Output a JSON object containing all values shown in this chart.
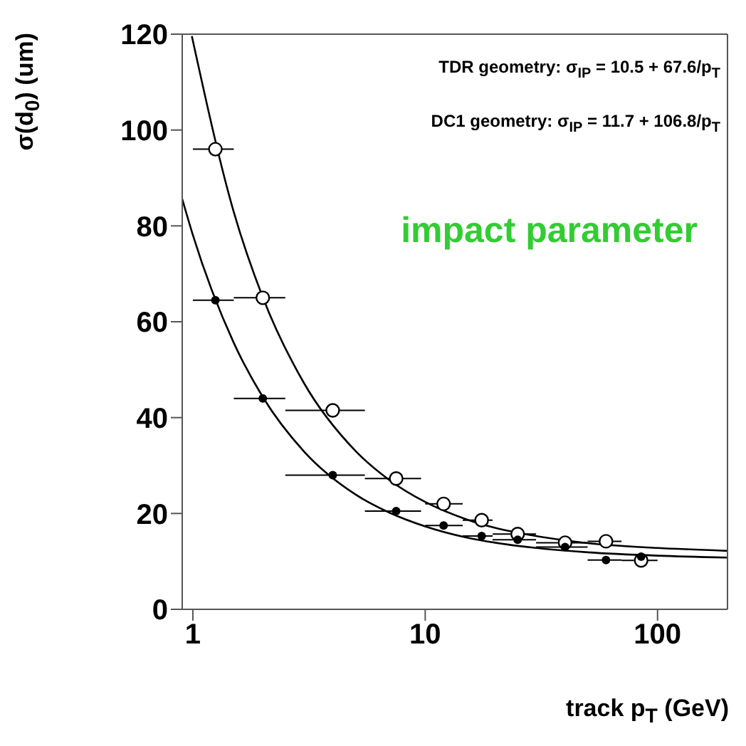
{
  "chart_data": {
    "type": "scatter",
    "xlabel": "track p$_{T}$ (GeV)",
    "ylabel": "σ(d$_{0}$) (um)",
    "annotations": [
      "TDR geometry: σ$_{IP}$ = 10.5 + 67.6/p$_{T}$",
      "DC1 geometry: σ$_{IP}$ = 11.7 + 106.8/p$_{T}$",
      "impact parameter"
    ],
    "log": "x",
    "xlim": [
      0.9,
      200
    ],
    "xticks": [
      1,
      10,
      100
    ],
    "ylim": [
      0,
      120
    ],
    "yticks": [
      0,
      20,
      40,
      60,
      80,
      100,
      120
    ],
    "grid": false,
    "legend": false,
    "series": [
      {
        "color": "#000000",
        "marker": "circle",
        "x": [
          1.25,
          2,
          4,
          7.5,
          12,
          17.5,
          25,
          40,
          60,
          85
        ],
        "values": [
          64.5,
          44,
          28,
          20.5,
          17.5,
          15.3,
          14.5,
          13,
          10.3,
          11
        ],
        "xerrors": [
          [
            1,
            1.5
          ],
          [
            1.5,
            2.5
          ],
          [
            2.5,
            5.5
          ],
          [
            5.5,
            9.6
          ],
          [
            10,
            14.5
          ],
          [
            14.5,
            19.5
          ],
          [
            19.5,
            30
          ],
          [
            30,
            50
          ],
          [
            50,
            70
          ],
          null
        ]
      },
      {
        "color": "#000000",
        "marker": "circle",
        "x": [
          1.25,
          2,
          4,
          7.5,
          12,
          17.5,
          25,
          40,
          60,
          85
        ],
        "values": [
          96,
          65,
          41.5,
          27.3,
          22,
          18.6,
          15.7,
          13.9,
          14.2,
          10.2
        ],
        "xerrors": [
          [
            1,
            1.5
          ],
          [
            1.5,
            2.5
          ],
          [
            2.5,
            5.5
          ],
          [
            5.5,
            9.6
          ],
          [
            10,
            14.5
          ],
          [
            14.5,
            19.5
          ],
          [
            19.5,
            30
          ],
          [
            30,
            50
          ],
          [
            50,
            70
          ],
          [
            70,
            100
          ]
        ]
      },
      {
        "type": "line",
        "marker": "none",
        "color": "#000000",
        "x": [
          0.9,
          1,
          1.5,
          2,
          3,
          5,
          7,
          10,
          15,
          20,
          30,
          50,
          100,
          200
        ],
        "values": [
          85.6,
          78.1,
          55.6,
          44.3,
          33,
          24,
          20.2,
          17.3,
          15,
          13.9,
          12.8,
          11.9,
          11.2,
          10.8
        ]
      },
      {
        "type": "line",
        "marker": "none",
        "color": "#000000",
        "x": [
          0.99,
          1.5,
          2,
          3,
          5,
          7,
          10,
          15,
          20,
          30,
          50,
          100,
          200
        ],
        "values": [
          119.6,
          82.9,
          65.1,
          47.3,
          33.1,
          27,
          22.4,
          18.8,
          17,
          15.3,
          13.8,
          12.8,
          12.2
        ]
      }
    ]
  }
}
